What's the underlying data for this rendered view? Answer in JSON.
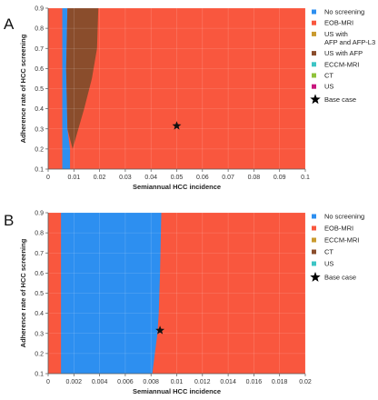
{
  "chart_data": [
    {
      "panel": "A",
      "type": "heatmap",
      "xlabel": "Semiannual HCC incidence",
      "ylabel": "Adherence rate of HCC screening",
      "xlim": [
        0,
        0.1
      ],
      "ylim": [
        0.1,
        0.9
      ],
      "xticks": [
        "0",
        "0.01",
        "0.02",
        "0.03",
        "0.04",
        "0.05",
        "0.06",
        "0.07",
        "0.08",
        "0.09",
        "0.1"
      ],
      "yticks": [
        "0.1",
        "0.2",
        "0.3",
        "0.4",
        "0.5",
        "0.6",
        "0.7",
        "0.8",
        "0.9"
      ],
      "grid": true,
      "legend_placement": "right",
      "legend": [
        {
          "label": "No screening",
          "color": "#2d8ff0",
          "marker": "square"
        },
        {
          "label": "EOB-MRI",
          "color": "#f9573e",
          "marker": "square"
        },
        {
          "label": "US with AFP and AFP-L3",
          "color": "#c99a2e",
          "marker": "square"
        },
        {
          "label": "US with AFP",
          "color": "#8a4d2c",
          "marker": "square"
        },
        {
          "label": "ECCM-MRI",
          "color": "#3cc4c4",
          "marker": "square"
        },
        {
          "label": "CT",
          "color": "#8fc23a",
          "marker": "square"
        },
        {
          "label": "US",
          "color": "#c8157d",
          "marker": "square"
        },
        {
          "label": "Base case",
          "color": "#000000",
          "marker": "star"
        }
      ],
      "regions": [
        {
          "name": "EOB-MRI",
          "color": "#f9573e",
          "fill": "background"
        },
        {
          "name": "No screening",
          "color": "#2d8ff0",
          "boundary": "x_upper",
          "x_lower": 0.0055,
          "points": [
            [
              0.0075,
              0.9
            ],
            [
              0.007,
              0.6
            ],
            [
              0.0075,
              0.3
            ],
            [
              0.0085,
              0.2
            ],
            [
              0.0085,
              0.1
            ]
          ]
        },
        {
          "name": "US with AFP",
          "color": "#8a4d2c",
          "boundary": "curve",
          "points": [
            [
              0.0095,
              0.2
            ],
            [
              0.014,
              0.4
            ],
            [
              0.017,
              0.55
            ],
            [
              0.019,
              0.7
            ],
            [
              0.0195,
              0.9
            ],
            [
              0.0075,
              0.9
            ],
            [
              0.007,
              0.6
            ],
            [
              0.0075,
              0.3
            ]
          ]
        }
      ],
      "base_case": {
        "x": 0.05,
        "y": 0.315
      }
    },
    {
      "panel": "B",
      "type": "heatmap",
      "xlabel": "Semiannual HCC incidence",
      "ylabel": "Adherence rate of HCC screening",
      "xlim": [
        0,
        0.02
      ],
      "ylim": [
        0.1,
        0.9
      ],
      "xticks": [
        "0",
        "0.002",
        "0.004",
        "0.006",
        "0.008",
        "0.01",
        "0.012",
        "0.014",
        "0.016",
        "0.018",
        "0.02"
      ],
      "yticks": [
        "0.1",
        "0.2",
        "0.3",
        "0.4",
        "0.5",
        "0.6",
        "0.7",
        "0.8",
        "0.9"
      ],
      "grid": true,
      "legend_placement": "right",
      "legend": [
        {
          "label": "No screening",
          "color": "#2d8ff0",
          "marker": "square"
        },
        {
          "label": "EOB-MRI",
          "color": "#f9573e",
          "marker": "square"
        },
        {
          "label": "ECCM-MRI",
          "color": "#c99a2e",
          "marker": "square"
        },
        {
          "label": "CT",
          "color": "#8a4d2c",
          "marker": "square"
        },
        {
          "label": "US",
          "color": "#3cc4c4",
          "marker": "square"
        },
        {
          "label": "Base case",
          "color": "#000000",
          "marker": "star"
        }
      ],
      "regions": [
        {
          "name": "EOB-MRI",
          "color": "#f9573e",
          "fill": "background"
        },
        {
          "name": "No screening",
          "color": "#2d8ff0",
          "boundary": "x_upper",
          "x_lower": 0.001,
          "points": [
            [
              0.0088,
              0.9
            ],
            [
              0.0087,
              0.6
            ],
            [
              0.0086,
              0.4
            ],
            [
              0.0085,
              0.3
            ],
            [
              0.0083,
              0.2
            ],
            [
              0.0081,
              0.1
            ]
          ]
        }
      ],
      "base_case": {
        "x": 0.0087,
        "y": 0.315
      }
    }
  ]
}
